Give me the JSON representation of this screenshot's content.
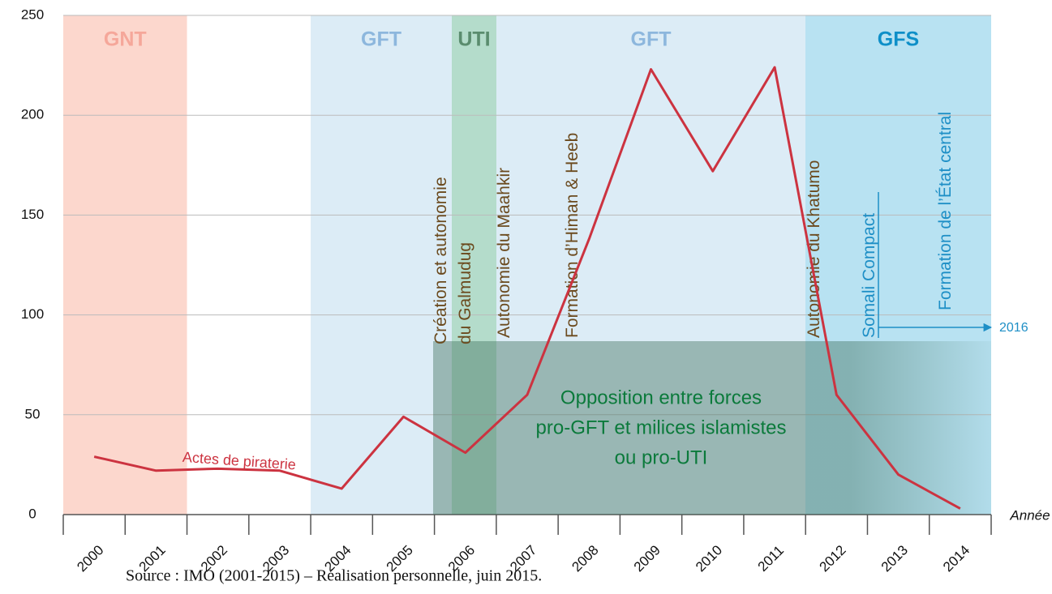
{
  "chart_data": {
    "type": "line",
    "categories": [
      "2000",
      "2001",
      "2002",
      "2003",
      "2004",
      "2005",
      "2006",
      "2007",
      "2008",
      "2009",
      "2010",
      "2011",
      "2012",
      "2013",
      "2014"
    ],
    "series": [
      {
        "name": "Actes de piraterie",
        "color": "#cc3340",
        "values": [
          29,
          22,
          23,
          22,
          13,
          49,
          31,
          60,
          138,
          223,
          172,
          224,
          60,
          20,
          3
        ]
      }
    ],
    "ylim": [
      0,
      250
    ],
    "yticks": [
      0,
      50,
      100,
      150,
      200,
      250
    ],
    "xlabel": "Année",
    "periods": [
      "GNT",
      "GFT",
      "UTI",
      "GFT",
      "GFS"
    ],
    "annotations": [
      "Création et autonomie",
      "du Galmudug",
      "Autonomie du Maahkir",
      "Formation d’Himan & Heeb",
      "Autonomie du Khatumo",
      "Somali Compact",
      "Formation de l’État central",
      "2016"
    ],
    "opposition": [
      "Opposition entre forces",
      "pro-GFT et milices islamistes",
      "ou pro-UTI"
    ],
    "source": "Source : IMO (2001-2015) – Réalisation personnelle, juin 2015."
  }
}
